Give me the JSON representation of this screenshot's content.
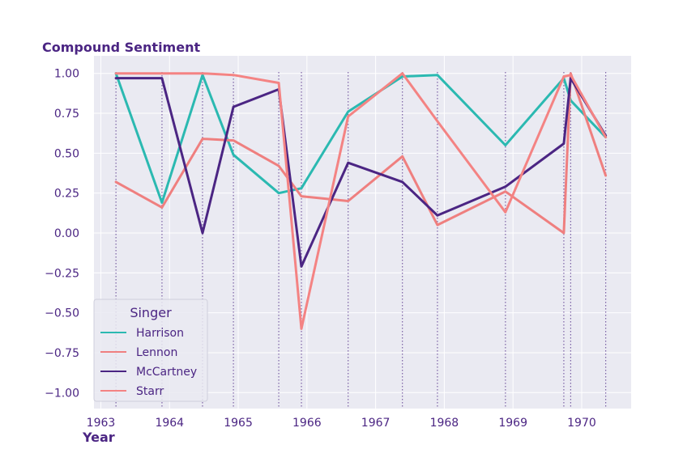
{
  "chart_data": {
    "type": "line",
    "ylabel": "Compound Sentiment",
    "xlabel": "Year",
    "xlim": [
      1962.9,
      1970.72
    ],
    "ylim": [
      -1.1,
      1.11
    ],
    "x_ticks": [
      1963,
      1964,
      1965,
      1966,
      1967,
      1968,
      1969,
      1970
    ],
    "y_ticks": [
      1.0,
      0.75,
      0.5,
      0.25,
      0.0,
      -0.25,
      -0.5,
      -0.75,
      -1.0
    ],
    "y_tick_labels": [
      "1.00",
      "0.75",
      "0.50",
      "0.25",
      "0.00",
      "−0.25",
      "−0.50",
      "−0.75",
      "−1.00"
    ],
    "grid": true,
    "legend_position": "lower-left",
    "legend_title": "Singer",
    "release_dates": [
      1963.22,
      1963.89,
      1964.48,
      1964.93,
      1965.59,
      1965.92,
      1966.6,
      1967.39,
      1967.9,
      1968.89,
      1969.74,
      1969.84,
      1970.35
    ],
    "series": [
      {
        "name": "Harrison",
        "color": "#2bb9b1",
        "x": [
          1963.22,
          1963.89,
          1964.48,
          1964.93,
          1965.59,
          1965.92,
          1966.6,
          1967.39,
          1967.9,
          1968.89,
          1969.74,
          1969.84,
          1970.35
        ],
        "y": [
          1.0,
          0.19,
          0.99,
          0.49,
          0.25,
          0.28,
          0.76,
          0.98,
          0.99,
          0.55,
          0.97,
          0.83,
          0.6
        ]
      },
      {
        "name": "Lennon",
        "color": "#ef7f7f",
        "x": [
          1963.22,
          1963.89,
          1964.48,
          1964.93,
          1965.59,
          1965.92,
          1966.6,
          1967.39,
          1967.9,
          1968.89,
          1969.74,
          1969.84,
          1970.35
        ],
        "y": [
          0.32,
          0.16,
          0.59,
          0.58,
          0.42,
          0.23,
          0.2,
          0.48,
          0.05,
          0.26,
          0.0,
          1.0,
          0.36
        ]
      },
      {
        "name": "McCartney",
        "color": "#4b2583",
        "x": [
          1963.22,
          1963.89,
          1964.48,
          1964.93,
          1965.59,
          1965.92,
          1966.6,
          1967.39,
          1967.9,
          1968.89,
          1969.74,
          1969.84,
          1970.35
        ],
        "y": [
          0.97,
          0.97,
          0.0,
          0.79,
          0.9,
          -0.21,
          0.44,
          0.32,
          0.11,
          0.29,
          0.56,
          0.97,
          0.61
        ]
      },
      {
        "name": "Starr",
        "color": "#f48383",
        "x": [
          1963.22,
          1963.89,
          1964.48,
          1964.93,
          1965.59,
          1965.92,
          1966.6,
          1967.39,
          1967.9,
          1968.89,
          1969.74,
          1969.84,
          1970.35
        ],
        "y": [
          1.0,
          1.0,
          1.0,
          0.99,
          0.94,
          -0.6,
          0.73,
          1.0,
          0.7,
          0.13,
          0.98,
          0.99,
          0.6
        ]
      }
    ]
  },
  "colors": {
    "plot_background": "#eaeaf2",
    "grid": "#ffffff",
    "text": "#4b2583",
    "vline": "#4b2583"
  }
}
